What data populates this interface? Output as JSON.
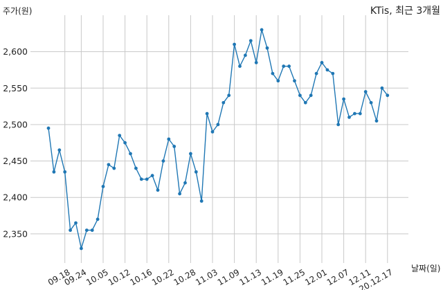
{
  "chart_data": {
    "type": "line",
    "title": "KTis, 최근 3개월",
    "xlabel": "날짜(일)",
    "ylabel": "주가(원)",
    "ylim": [
      2310,
      2650
    ],
    "yticks": [
      2350,
      2400,
      2450,
      2500,
      2550,
      2600
    ],
    "ytick_labels": [
      "2,350",
      "2,400",
      "2,450",
      "2,500",
      "2,550",
      "2,600"
    ],
    "xtick_labels": [
      "09.18",
      "09.24",
      "10.05",
      "10.12",
      "10.16",
      "10.22",
      "10.28",
      "11.03",
      "11.09",
      "11.13",
      "11.19",
      "11.25",
      "12.01",
      "12.07",
      "12.11",
      "20.12.17"
    ],
    "xtick_index": [
      3,
      6,
      10,
      14,
      18,
      22,
      26,
      30,
      34,
      38,
      42,
      46,
      50,
      54,
      58,
      62
    ],
    "grid": true,
    "color": "#1f77b4",
    "series": [
      {
        "values": [
          2495,
          2435,
          2465,
          2435,
          2355,
          2365,
          2330,
          2355,
          2355,
          2370,
          2415,
          2445,
          2440,
          2485,
          2475,
          2460,
          2440,
          2425,
          2425,
          2430,
          2410,
          2450,
          2480,
          2470,
          2405,
          2420,
          2460,
          2435,
          2395,
          2515,
          2490,
          2500,
          2530,
          2540,
          2610,
          2580,
          2595,
          2615,
          2585,
          2630,
          2605,
          2570,
          2560,
          2580,
          2580,
          2560,
          2540,
          2530,
          2540,
          2570,
          2585,
          2575,
          2570,
          2500,
          2535,
          2510,
          2515,
          2515,
          2545,
          2530,
          2505,
          2550,
          2540
        ]
      }
    ]
  }
}
